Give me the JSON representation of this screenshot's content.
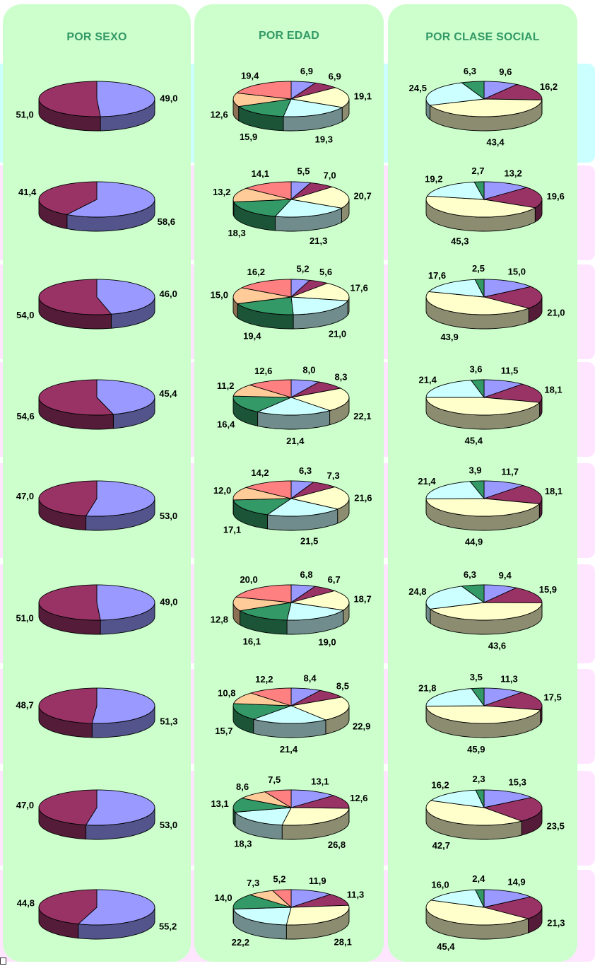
{
  "headers": {
    "sexo": "POR SEXO",
    "edad": "POR EDAD",
    "clase": "POR CLASE SOCIAL"
  },
  "colors": {
    "c1": "#9999ff",
    "c2": "#993366",
    "c3": "#ffffcc",
    "c4": "#ccffff",
    "c5": "#339966",
    "c6": "#ffcc99",
    "c7": "#ff8080",
    "panel": "#ccffcc",
    "title": "#339966",
    "band_cyan": "#ccffff",
    "band_pink": "#ffe5ff"
  },
  "chart_data": [
    {
      "type": "pie",
      "group": "sexo",
      "row": 1,
      "values": [
        "49,0",
        "51,0"
      ]
    },
    {
      "type": "pie",
      "group": "edad",
      "row": 1,
      "values": [
        "6,9",
        "6,9",
        "19,1",
        "19,3",
        "15,9",
        "12,6",
        "19,4"
      ]
    },
    {
      "type": "pie",
      "group": "clase",
      "row": 1,
      "values": [
        "9,6",
        "16,2",
        "43,4",
        "24,5",
        "6,3"
      ]
    },
    {
      "type": "pie",
      "group": "sexo",
      "row": 2,
      "values": [
        "58,6",
        "41,4"
      ]
    },
    {
      "type": "pie",
      "group": "edad",
      "row": 2,
      "values": [
        "5,5",
        "7,0",
        "20,7",
        "21,3",
        "18,3",
        "13,2",
        "14,1"
      ]
    },
    {
      "type": "pie",
      "group": "clase",
      "row": 2,
      "values": [
        "13,2",
        "19,6",
        "45,3",
        "19,2",
        "2,7"
      ]
    },
    {
      "type": "pie",
      "group": "sexo",
      "row": 3,
      "values": [
        "46,0",
        "54,0"
      ]
    },
    {
      "type": "pie",
      "group": "edad",
      "row": 3,
      "values": [
        "5,2",
        "5,6",
        "17,6",
        "21,0",
        "19,4",
        "15,0",
        "16,2"
      ]
    },
    {
      "type": "pie",
      "group": "clase",
      "row": 3,
      "values": [
        "15,0",
        "21,0",
        "43,9",
        "17,6",
        "2,5"
      ]
    },
    {
      "type": "pie",
      "group": "sexo",
      "row": 4,
      "values": [
        "45,4",
        "54,6"
      ]
    },
    {
      "type": "pie",
      "group": "edad",
      "row": 4,
      "values": [
        "8,0",
        "8,3",
        "22,1",
        "21,4",
        "16,4",
        "11,2",
        "12,6"
      ]
    },
    {
      "type": "pie",
      "group": "clase",
      "row": 4,
      "values": [
        "11,5",
        "18,1",
        "45,4",
        "21,4",
        "3,6"
      ]
    },
    {
      "type": "pie",
      "group": "sexo",
      "row": 5,
      "values": [
        "53,0",
        "47,0"
      ]
    },
    {
      "type": "pie",
      "group": "edad",
      "row": 5,
      "values": [
        "6,3",
        "7,3",
        "21,6",
        "21,5",
        "17,1",
        "12,0",
        "14,2"
      ]
    },
    {
      "type": "pie",
      "group": "clase",
      "row": 5,
      "values": [
        "11,7",
        "18,1",
        "44,9",
        "21,4",
        "3,9"
      ]
    },
    {
      "type": "pie",
      "group": "sexo",
      "row": 6,
      "values": [
        "49,0",
        "51,0"
      ]
    },
    {
      "type": "pie",
      "group": "edad",
      "row": 6,
      "values": [
        "6,8",
        "6,7",
        "18,7",
        "19,0",
        "16,1",
        "12,8",
        "20,0"
      ]
    },
    {
      "type": "pie",
      "group": "clase",
      "row": 6,
      "values": [
        "9,4",
        "15,9",
        "43,6",
        "24,8",
        "6,3"
      ]
    },
    {
      "type": "pie",
      "group": "sexo",
      "row": 7,
      "values": [
        "51,3",
        "48,7"
      ]
    },
    {
      "type": "pie",
      "group": "edad",
      "row": 7,
      "values": [
        "8,4",
        "8,5",
        "22,9",
        "21,4",
        "15,7",
        "10,8",
        "12,2"
      ]
    },
    {
      "type": "pie",
      "group": "clase",
      "row": 7,
      "values": [
        "11,3",
        "17,5",
        "45,9",
        "21,8",
        "3,5"
      ]
    },
    {
      "type": "pie",
      "group": "sexo",
      "row": 8,
      "values": [
        "53,0",
        "47,0"
      ]
    },
    {
      "type": "pie",
      "group": "edad",
      "row": 8,
      "values": [
        "13,1",
        "12,6",
        "26,8",
        "18,3",
        "13,1",
        "8,6",
        "7,5"
      ]
    },
    {
      "type": "pie",
      "group": "clase",
      "row": 8,
      "values": [
        "15,3",
        "23,5",
        "42,7",
        "16,2",
        "2,3"
      ]
    },
    {
      "type": "pie",
      "group": "sexo",
      "row": 9,
      "values": [
        "55,2",
        "44,8"
      ]
    },
    {
      "type": "pie",
      "group": "edad",
      "row": 9,
      "values": [
        "11,9",
        "11,3",
        "28,1",
        "22,2",
        "14,0",
        "7,3",
        "5,2"
      ]
    },
    {
      "type": "pie",
      "group": "clase",
      "row": 9,
      "values": [
        "14,9",
        "21,3",
        "45,4",
        "16,0",
        "2,4"
      ]
    }
  ]
}
